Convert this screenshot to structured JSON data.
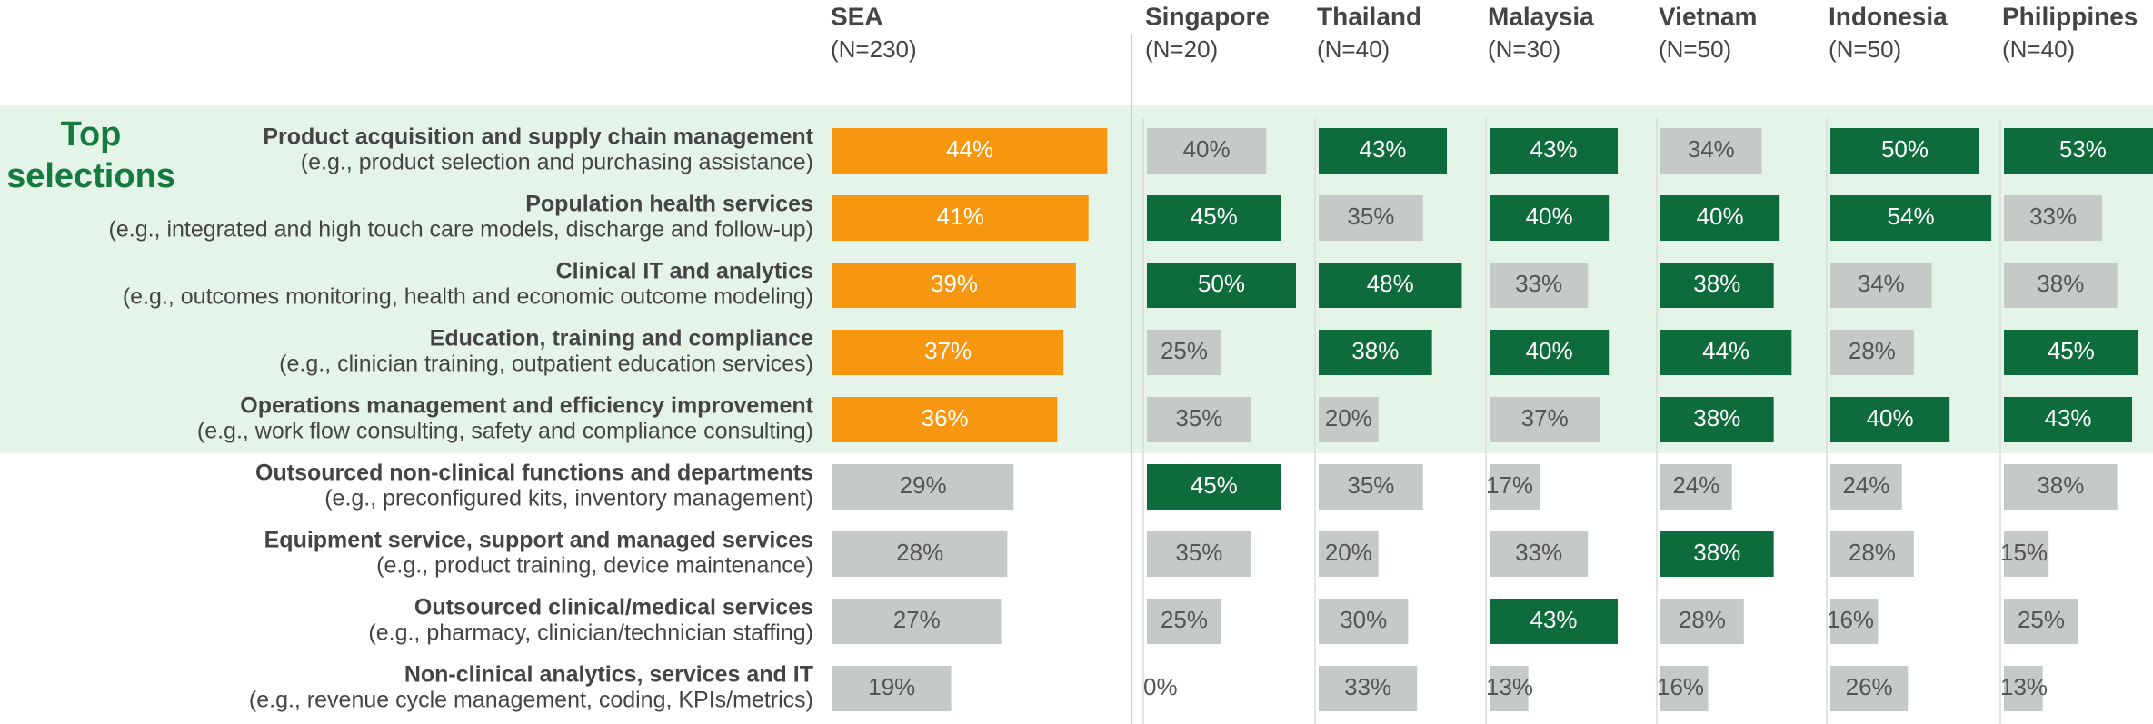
{
  "chart_data": {
    "type": "bar",
    "side_label": [
      "Top",
      "selections"
    ],
    "categories": [
      "Product acquisition and supply chain management",
      "Population health services",
      "Clinical IT and analytics",
      "Education, training and compliance",
      "Operations management and efficiency improvement",
      "Outsourced non-clinical functions and departments",
      "Equipment service, support and managed services",
      "Outsourced clinical/medical services",
      "Non-clinical analytics, services and IT"
    ],
    "category_notes": [
      "(e.g., product selection and purchasing assistance)",
      "(e.g., integrated and high touch care models, discharge and follow-up)",
      "(e.g., outcomes monitoring, health and economic outcome modeling)",
      "(e.g., clinician training, outpatient education services)",
      "(e.g., work flow consulting, safety and compliance consulting)",
      "(e.g., preconfigured kits, inventory management)",
      "(e.g., product training, device maintenance)",
      "(e.g., pharmacy, clinician/technician staffing)",
      "(e.g., revenue cycle management, coding, KPIs/metrics)"
    ],
    "series": [
      {
        "name": "SEA",
        "sample": "(N=230)",
        "values": [
          44,
          41,
          39,
          37,
          36,
          29,
          28,
          27,
          19
        ],
        "value_labels": [
          "44%",
          "41%",
          "39%",
          "37%",
          "36%",
          "29%",
          "28%",
          "27%",
          "19%"
        ],
        "colors": [
          "#f7960f",
          "#f7960f",
          "#f7960f",
          "#f7960f",
          "#f7960f",
          "#c5c9c8",
          "#c5c9c8",
          "#c5c9c8",
          "#c5c9c8"
        ]
      },
      {
        "name": "Singapore",
        "sample": "(N=20)",
        "values": [
          40,
          45,
          50,
          25,
          35,
          45,
          35,
          25,
          0
        ],
        "value_labels": [
          "40%",
          "45%",
          "50%",
          "25%",
          "35%",
          "45%",
          "35%",
          "25%",
          "0%"
        ],
        "colors": [
          "#c5c9c8",
          "#0e6b3b",
          "#0e6b3b",
          "#c5c9c8",
          "#c5c9c8",
          "#0e6b3b",
          "#c5c9c8",
          "#c5c9c8",
          "#c5c9c8"
        ]
      },
      {
        "name": "Thailand",
        "sample": "(N=40)",
        "values": [
          43,
          35,
          48,
          38,
          20,
          35,
          20,
          30,
          33
        ],
        "value_labels": [
          "43%",
          "35%",
          "48%",
          "38%",
          "20%",
          "35%",
          "20%",
          "30%",
          "33%"
        ],
        "colors": [
          "#0e6b3b",
          "#c5c9c8",
          "#0e6b3b",
          "#0e6b3b",
          "#c5c9c8",
          "#c5c9c8",
          "#c5c9c8",
          "#c5c9c8",
          "#c5c9c8"
        ]
      },
      {
        "name": "Malaysia",
        "sample": "(N=30)",
        "values": [
          43,
          40,
          33,
          40,
          37,
          17,
          33,
          43,
          13
        ],
        "value_labels": [
          "43%",
          "40%",
          "33%",
          "40%",
          "37%",
          "17%",
          "33%",
          "43%",
          "13%"
        ],
        "colors": [
          "#0e6b3b",
          "#0e6b3b",
          "#c5c9c8",
          "#0e6b3b",
          "#c5c9c8",
          "#c5c9c8",
          "#c5c9c8",
          "#0e6b3b",
          "#c5c9c8"
        ]
      },
      {
        "name": "Vietnam",
        "sample": "(N=50)",
        "values": [
          34,
          40,
          38,
          44,
          38,
          24,
          38,
          28,
          16
        ],
        "value_labels": [
          "34%",
          "40%",
          "38%",
          "44%",
          "38%",
          "24%",
          "38%",
          "28%",
          "16%"
        ],
        "colors": [
          "#c5c9c8",
          "#0e6b3b",
          "#0e6b3b",
          "#0e6b3b",
          "#0e6b3b",
          "#c5c9c8",
          "#0e6b3b",
          "#c5c9c8",
          "#c5c9c8"
        ]
      },
      {
        "name": "Indonesia",
        "sample": "(N=50)",
        "values": [
          50,
          54,
          34,
          28,
          40,
          24,
          28,
          16,
          26
        ],
        "value_labels": [
          "50%",
          "54%",
          "34%",
          "28%",
          "40%",
          "24%",
          "28%",
          "16%",
          "26%"
        ],
        "colors": [
          "#0e6b3b",
          "#0e6b3b",
          "#c5c9c8",
          "#c5c9c8",
          "#0e6b3b",
          "#c5c9c8",
          "#c5c9c8",
          "#c5c9c8",
          "#c5c9c8"
        ]
      },
      {
        "name": "Philippines",
        "sample": "(N=40)",
        "values": [
          53,
          33,
          38,
          45,
          43,
          38,
          15,
          25,
          13
        ],
        "value_labels": [
          "53%",
          "33%",
          "38%",
          "45%",
          "43%",
          "38%",
          "15%",
          "25%",
          "13%"
        ],
        "colors": [
          "#0e6b3b",
          "#c5c9c8",
          "#c5c9c8",
          "#0e6b3b",
          "#0e6b3b",
          "#c5c9c8",
          "#c5c9c8",
          "#c5c9c8",
          "#c5c9c8"
        ]
      }
    ]
  }
}
